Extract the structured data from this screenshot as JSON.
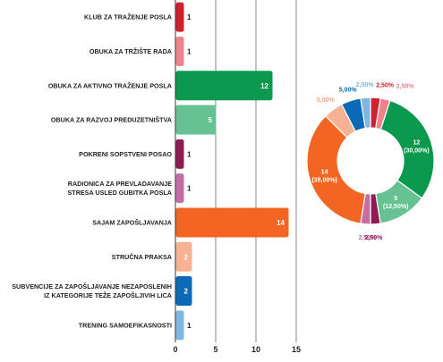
{
  "chart_data": [
    {
      "type": "bar",
      "orientation": "horizontal",
      "categories": [
        [
          "KLUB ZA TRAŽENJE POSLA"
        ],
        [
          "OBUKA ZA TRŽIŠTE RADA"
        ],
        [
          "OBUKA ZA AKTIVNO TRAŽENJE POSLA"
        ],
        [
          "OBUKA ZA RAZVOJ PREDUZETNIŠTVA"
        ],
        [
          "POKRENI SOPSTVENI POSAO"
        ],
        [
          "RADIONICA ZA PREVLADAVANJE",
          "STRESA USLED GUBITKA POSLA"
        ],
        [
          "SAJAM ZAPOŠLJAVANJA"
        ],
        [
          "STRUČNA PRAKSA"
        ],
        [
          "SUBVENCIJE ZA ZAPOŠLJAVANJE NEZAPOSLENIH",
          "IZ KATEGORIJE TEŽE ZAPOŠLJIVIH LICA"
        ],
        [
          "TRENING SAMOEFIKASNOSTI"
        ]
      ],
      "values": [
        1,
        1,
        12,
        5,
        1,
        1,
        14,
        2,
        2,
        1
      ],
      "data_labels": [
        "1",
        "1",
        "12",
        "5",
        "1",
        "1",
        "14",
        "2",
        "2",
        "1"
      ],
      "colors": [
        "#cf202f",
        "#f0828c",
        "#0b9a4d",
        "#66c293",
        "#8e1c52",
        "#c46ea3",
        "#f26522",
        "#f7b293",
        "#0a6ab7",
        "#7fb6e2"
      ],
      "xlim": [
        0,
        15
      ],
      "xticks": [
        "0",
        "5",
        "10",
        "15"
      ],
      "grid": true
    },
    {
      "type": "pie",
      "style": "donut",
      "values": [
        1,
        1,
        12,
        5,
        1,
        1,
        14,
        2,
        2,
        1
      ],
      "labels": [
        "2,50%",
        "2,50%",
        "12\n(30,00%)",
        "5\n(12,50%)",
        "2,50%",
        "2,50%",
        "14\n(35,00%)",
        "5,00%",
        "5,00%",
        "2,50%"
      ],
      "colors": [
        "#cf202f",
        "#f0828c",
        "#0b9a4d",
        "#66c293",
        "#8e1c52",
        "#c46ea3",
        "#f26522",
        "#f7b293",
        "#0a6ab7",
        "#7fb6e2"
      ]
    }
  ]
}
